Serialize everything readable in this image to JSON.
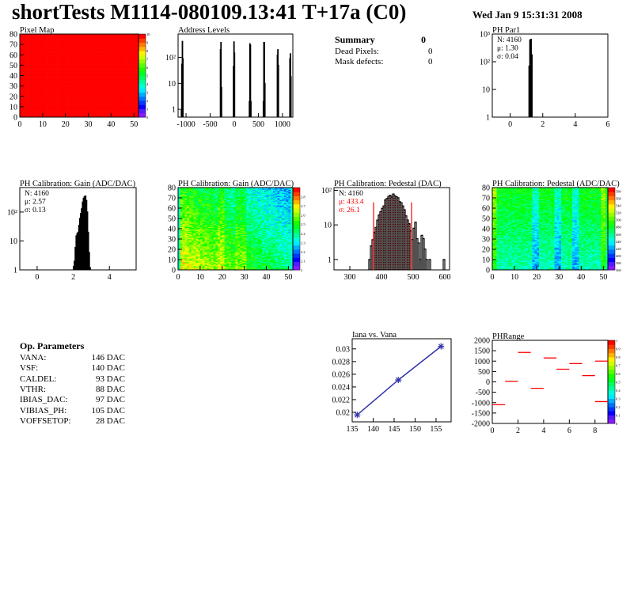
{
  "header": {
    "title": "shortTests M1114-080109.13:41 T+17a (C0)",
    "date": "Wed Jan  9 15:31:31 2008"
  },
  "summary": {
    "title": "Summary",
    "total": "0",
    "rows": [
      {
        "label": "Dead Pixels:",
        "value": "0"
      },
      {
        "label": "Mask defects:",
        "value": "0"
      }
    ]
  },
  "op_params": {
    "title": "Op. Parameters",
    "rows": [
      {
        "label": "VANA:",
        "value": "146 DAC"
      },
      {
        "label": "VSF:",
        "value": "140 DAC"
      },
      {
        "label": "CALDEL:",
        "value": "93 DAC"
      },
      {
        "label": "VTHR:",
        "value": "88 DAC"
      },
      {
        "label": "IBIAS_DAC:",
        "value": "97 DAC"
      },
      {
        "label": "VIBIAS_PH:",
        "value": "105 DAC"
      },
      {
        "label": "VOFFSETOP:",
        "value": "28 DAC"
      }
    ]
  },
  "chart_data": [
    {
      "id": "pixelmap",
      "type": "heatmap",
      "title": "Pixel Map",
      "xlim": [
        0,
        52
      ],
      "ylim": [
        0,
        80
      ],
      "xticks": [
        0,
        10,
        20,
        30,
        40,
        50
      ],
      "yticks": [
        0,
        10,
        20,
        30,
        40,
        50,
        60,
        70,
        80
      ],
      "zlim": [
        0,
        10
      ],
      "zticks": [
        0,
        1,
        2,
        3,
        4,
        5,
        6,
        7,
        8,
        9,
        10
      ],
      "uniform_value": 10
    },
    {
      "id": "address",
      "type": "bar",
      "title": "Address Levels",
      "log_y": true,
      "xlim": [
        -1165,
        1215
      ],
      "ylim": [
        0.5,
        800
      ],
      "xticks": [
        -1000,
        -500,
        0,
        500,
        1000
      ],
      "yticks": [
        {
          "v": 1,
          "l": "1"
        },
        {
          "v": 10,
          "l": "10"
        },
        {
          "v": 100,
          "l": "10²"
        }
      ],
      "bins": [
        [
          -1090,
          55
        ],
        [
          -1080,
          420
        ],
        [
          -1070,
          90
        ],
        [
          -1100,
          0.9
        ],
        [
          -290,
          200
        ],
        [
          -280,
          380
        ],
        [
          -270,
          7
        ],
        [
          -20,
          45
        ],
        [
          -10,
          400
        ],
        [
          0,
          150
        ],
        [
          310,
          2
        ],
        [
          320,
          340
        ],
        [
          330,
          300
        ],
        [
          340,
          2
        ],
        [
          600,
          2
        ],
        [
          610,
          380
        ],
        [
          620,
          380
        ],
        [
          630,
          10
        ],
        [
          890,
          120
        ],
        [
          900,
          200
        ],
        [
          910,
          50
        ],
        [
          1150,
          90
        ],
        [
          1160,
          140
        ],
        [
          1170,
          18
        ]
      ],
      "bin_width": 10
    },
    {
      "id": "phpar1",
      "type": "bar",
      "title": "PH Par1",
      "log_y": true,
      "xlim": [
        -1.1,
        6
      ],
      "ylim": [
        1,
        1000
      ],
      "xticks": [
        0,
        2,
        4,
        6
      ],
      "yticks": [
        {
          "v": 1,
          "l": "1"
        },
        {
          "v": 10,
          "l": "10"
        },
        {
          "v": 100,
          "l": "10²"
        },
        {
          "v": 1000,
          "l": "10³"
        }
      ],
      "bins": [
        [
          1.15,
          70
        ],
        [
          1.2,
          600
        ],
        [
          1.25,
          650
        ],
        [
          1.3,
          180
        ]
      ],
      "bin_width": 0.05,
      "stats": {
        "n": "N: 4160",
        "mean": "μ: 1.30",
        "sigma": "σ: 0.04"
      }
    },
    {
      "id": "gainhist",
      "type": "bar",
      "title": "PH Calibration: Gain (ADC/DAC)",
      "log_y": true,
      "xlim": [
        -0.96,
        5.48
      ],
      "ylim": [
        1,
        700
      ],
      "xticks": [
        0,
        2,
        4
      ],
      "yticks": [
        {
          "v": 1,
          "l": "1"
        },
        {
          "v": 10,
          "l": "10"
        },
        {
          "v": 100,
          "l": "10²"
        }
      ],
      "bins": [
        [
          2.05,
          2
        ],
        [
          2.1,
          6
        ],
        [
          2.15,
          15
        ],
        [
          2.2,
          18
        ],
        [
          2.25,
          20
        ],
        [
          2.3,
          35
        ],
        [
          2.35,
          60
        ],
        [
          2.4,
          90
        ],
        [
          2.45,
          130
        ],
        [
          2.5,
          220
        ],
        [
          2.55,
          300
        ],
        [
          2.6,
          340
        ],
        [
          2.65,
          360
        ],
        [
          2.7,
          250
        ],
        [
          2.75,
          100
        ],
        [
          2.8,
          20
        ],
        [
          2.85,
          4
        ],
        [
          2.9,
          1.2
        ]
      ],
      "bin_width": 0.05,
      "stats": {
        "n": "N: 4160",
        "mean": "μ: 2.57",
        "sigma": "σ: 0.13"
      }
    },
    {
      "id": "gainmap",
      "type": "heatmap",
      "title": "PH Calibration: Gain (ADC/DAC)",
      "xlim": [
        0,
        52
      ],
      "ylim": [
        0,
        80
      ],
      "xticks": [
        0,
        10,
        20,
        30,
        40,
        50
      ],
      "yticks": [
        0,
        10,
        20,
        30,
        40,
        50,
        60,
        70,
        80
      ],
      "zlim": [
        2,
        2.9
      ],
      "zticks": [
        2,
        2.1,
        2.2,
        2.3,
        2.4,
        2.5,
        2.6,
        2.7,
        2.8
      ]
    },
    {
      "id": "pedhist",
      "type": "bar",
      "title": "PH Calibration: Pedestal (DAC)",
      "log_y": true,
      "xlim": [
        250,
        615
      ],
      "ylim": [
        0.5,
        120
      ],
      "xticks": [
        300,
        400,
        500,
        600
      ],
      "yticks": [
        {
          "v": 1,
          "l": "1"
        },
        {
          "v": 10,
          "l": "10"
        },
        {
          "v": 100,
          "l": "10²"
        }
      ],
      "fit_range": [
        375,
        495
      ],
      "stats": {
        "n": "N: 4160",
        "mean": "μ: 433.4",
        "sigma": "σ: 26.1"
      },
      "mean": 433.4,
      "sigma": 26.1,
      "peak": 70,
      "tail_bins": [
        [
          360,
          1
        ],
        [
          500,
          8
        ],
        [
          505,
          12
        ],
        [
          510,
          4
        ],
        [
          515,
          3
        ],
        [
          520,
          1
        ],
        [
          525,
          5
        ],
        [
          530,
          4
        ],
        [
          535,
          2
        ],
        [
          540,
          1
        ],
        [
          550,
          1
        ],
        [
          595,
          1
        ]
      ],
      "bin_width": 5
    },
    {
      "id": "pedmap",
      "type": "heatmap",
      "title": "PH Calibration: Pedestal (ADC/DAC)",
      "xlim": [
        0,
        52
      ],
      "ylim": [
        0,
        80
      ],
      "xticks": [
        0,
        10,
        20,
        30,
        40,
        50
      ],
      "yticks": [
        0,
        10,
        20,
        30,
        40,
        50,
        60,
        70,
        80
      ],
      "zlim": [
        360,
        590
      ],
      "zticks": [
        360,
        380,
        400,
        420,
        440,
        460,
        480,
        500,
        520,
        540,
        560,
        580
      ]
    },
    {
      "id": "iana",
      "type": "line",
      "title": "Iana vs. Vana",
      "xlim": [
        135,
        158.6
      ],
      "ylim": [
        0.0185,
        0.0316
      ],
      "xticks": [
        135,
        140,
        145,
        150,
        155
      ],
      "yticks": [
        0.02,
        0.022,
        0.024,
        0.026,
        0.028,
        0.03
      ],
      "x": [
        136.2,
        146,
        156.2
      ],
      "y": [
        0.0196,
        0.0251,
        0.0304
      ],
      "color": "#3333aa"
    },
    {
      "id": "phrange",
      "type": "heatmap",
      "title": "PHRange",
      "xlim": [
        0,
        9
      ],
      "ylim": [
        -2000,
        2000
      ],
      "xticks": [
        0,
        2,
        4,
        6,
        8
      ],
      "yticks": [
        -2000,
        -1500,
        -1000,
        -500,
        0,
        500,
        1000,
        1500,
        2000
      ],
      "zlim": [
        0,
        1
      ],
      "zticks": [
        0,
        0.1,
        0.2,
        0.3,
        0.4,
        0.5,
        0.6,
        0.7,
        0.8,
        0.9,
        1
      ],
      "segments": [
        [
          0,
          -1100
        ],
        [
          1,
          30
        ],
        [
          2,
          1420
        ],
        [
          3,
          -310
        ],
        [
          4,
          1150
        ],
        [
          5,
          610
        ],
        [
          6,
          880
        ],
        [
          7,
          300
        ],
        [
          8,
          1000
        ],
        [
          8,
          -950
        ]
      ],
      "color": "#ff0000"
    }
  ]
}
